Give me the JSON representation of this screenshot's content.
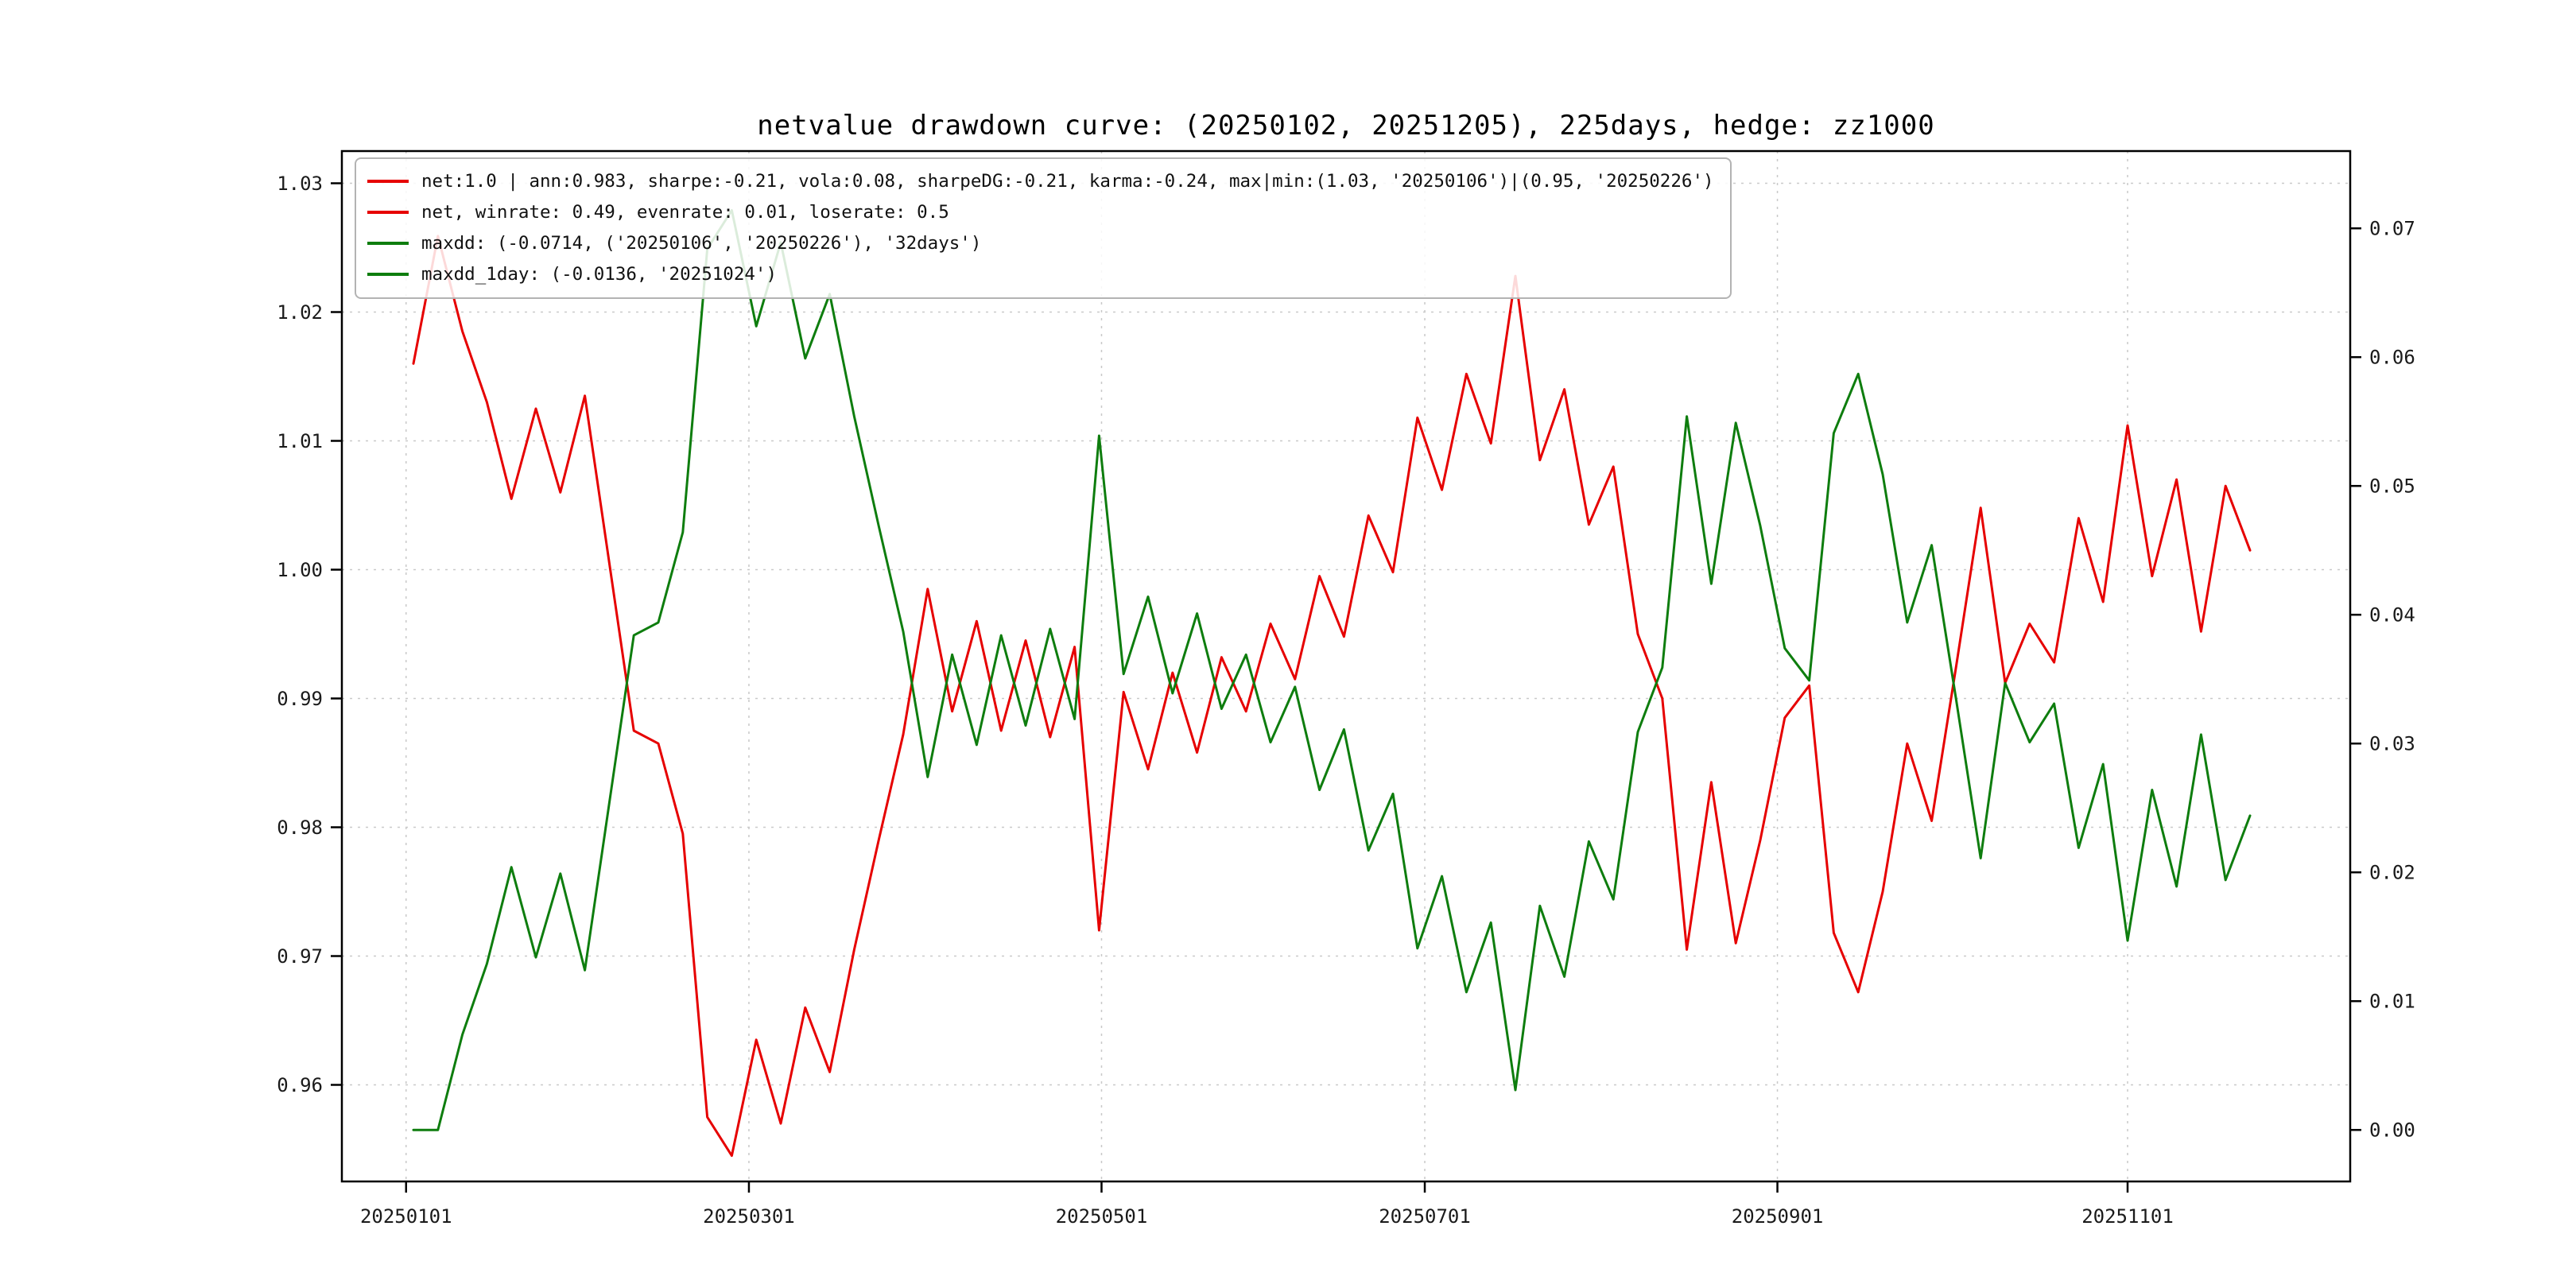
{
  "chart_data": {
    "type": "line",
    "title": "netvalue drawdown curve: (20250102, 20251205), 225days, hedge: zz1000",
    "date_range": [
      "20250102",
      "20251205"
    ],
    "n_days": 225,
    "grid": true,
    "legend_position": "upper left",
    "colors": {
      "net": "#e60000",
      "drawdown": "#0e7d0e",
      "grid": "#c9c9c9",
      "frame": "#000000"
    },
    "x_ticks": {
      "labels": [
        "20250101",
        "20250301",
        "20250501",
        "20250701",
        "20250901",
        "20251101"
      ],
      "positions_t": [
        -0.3,
        13.7,
        28.1,
        41.3,
        55.7,
        70.0
      ],
      "t_max": 75
    },
    "left_axis": {
      "ticks": [
        1.03,
        1.02,
        1.01,
        1.0,
        0.99,
        0.98,
        0.97,
        0.96
      ],
      "lim": [
        0.9525,
        1.0325
      ]
    },
    "right_axis": {
      "ticks": [
        0.07,
        0.06,
        0.05,
        0.04,
        0.03,
        0.02,
        0.01,
        0.0
      ],
      "lim": [
        -0.004,
        0.076
      ]
    },
    "series": [
      {
        "name": "net",
        "axis": "left",
        "color": "#e60000",
        "values": [
          1.016,
          1.0259,
          1.0185,
          1.013,
          1.0055,
          1.0125,
          1.006,
          1.0135,
          1.0005,
          0.9875,
          0.9865,
          0.9795,
          0.9575,
          0.9545,
          0.9635,
          0.957,
          0.966,
          0.961,
          0.9705,
          0.979,
          0.9872,
          0.9985,
          0.989,
          0.996,
          0.9875,
          0.9945,
          0.987,
          0.994,
          0.972,
          0.9905,
          0.9845,
          0.992,
          0.9858,
          0.9932,
          0.989,
          0.9958,
          0.9915,
          0.9995,
          0.9948,
          1.0042,
          0.9998,
          1.0118,
          1.0062,
          1.0152,
          1.0098,
          1.0228,
          1.0085,
          1.014,
          1.0035,
          1.008,
          0.995,
          0.99,
          0.9705,
          0.9835,
          0.971,
          0.979,
          0.9885,
          0.991,
          0.9718,
          0.9672,
          0.975,
          0.9865,
          0.9805,
          0.9925,
          1.0048,
          0.9912,
          0.9958,
          0.9928,
          1.004,
          0.9975,
          1.0112,
          0.9995,
          1.007,
          0.9952,
          1.0065,
          1.0015
        ]
      },
      {
        "name": "maxdd",
        "axis": "right",
        "color": "#0e7d0e",
        "values": [
          0.0,
          0.0,
          0.0074,
          0.0129,
          0.0204,
          0.0134,
          0.0199,
          0.0124,
          0.0254,
          0.0384,
          0.0394,
          0.0464,
          0.0684,
          0.0714,
          0.0624,
          0.0689,
          0.0599,
          0.0649,
          0.0554,
          0.0469,
          0.0387,
          0.0274,
          0.0369,
          0.0299,
          0.0384,
          0.0314,
          0.0389,
          0.0319,
          0.0539,
          0.0354,
          0.0414,
          0.0339,
          0.0401,
          0.0327,
          0.0369,
          0.0301,
          0.0344,
          0.0264,
          0.0311,
          0.0217,
          0.0261,
          0.0141,
          0.0197,
          0.0107,
          0.0161,
          0.0031,
          0.0174,
          0.0119,
          0.0224,
          0.0179,
          0.0309,
          0.0359,
          0.0554,
          0.0424,
          0.0549,
          0.0469,
          0.0374,
          0.0349,
          0.0541,
          0.0587,
          0.0509,
          0.0394,
          0.0454,
          0.0334,
          0.0211,
          0.0347,
          0.0301,
          0.0331,
          0.0219,
          0.0284,
          0.0147,
          0.0264,
          0.0189,
          0.0307,
          0.0194,
          0.0244
        ]
      }
    ],
    "legend": [
      {
        "series": "net",
        "color": "#e60000",
        "label": "net:1.0 | ann:0.983, sharpe:-0.21, vola:0.08, sharpeDG:-0.21, karma:-0.24, max|min:(1.03, '20250106')|(0.95, '20250226')"
      },
      {
        "series": "net",
        "color": "#e60000",
        "label": "net, winrate: 0.49, evenrate: 0.01, loserate: 0.5"
      },
      {
        "series": "maxdd",
        "color": "#0e7d0e",
        "label": "maxdd: (-0.0714, ('20250106', '20250226'), '32days')"
      },
      {
        "series": "maxdd_1day",
        "color": "#0e7d0e",
        "label": "maxdd_1day: (-0.0136, '20251024')"
      }
    ]
  }
}
